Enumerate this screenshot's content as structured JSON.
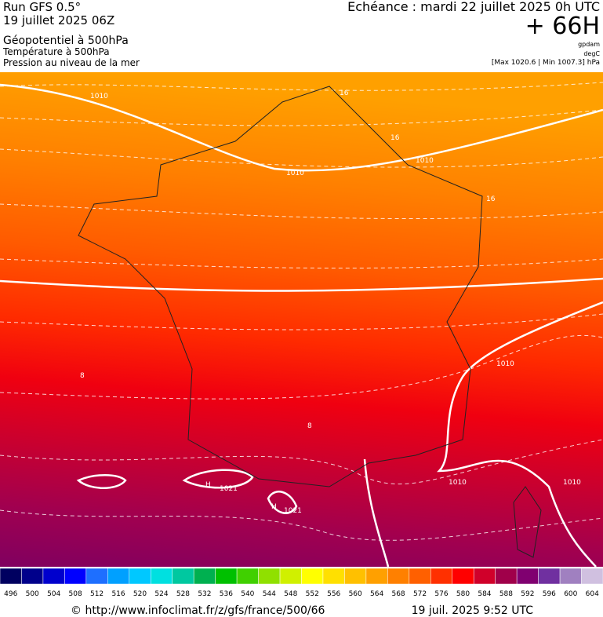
{
  "header": {
    "title": "Run GFS 0.5°",
    "run": "19 juillet 2025 06Z",
    "fields": [
      "Géopotentiel à 500hPa",
      "Température à 500hPa",
      "Pression au niveau de la mer"
    ],
    "echeance": "Echéance : mardi 22 juillet 2025 0h UTC",
    "offset": "+ 66H",
    "units": [
      "gpdam",
      "degC",
      "[Max 1020.6 | Min 1007.3] hPa"
    ]
  },
  "map": {
    "labels": [
      "1010",
      "1010",
      "1010",
      "16",
      "16",
      "16",
      "8",
      "8",
      "1010",
      "1010",
      "1010",
      "H",
      "1021",
      "H",
      "1021"
    ]
  },
  "legend": {
    "values": [
      496,
      500,
      504,
      508,
      512,
      516,
      520,
      524,
      528,
      532,
      536,
      540,
      544,
      548,
      552,
      556,
      560,
      564,
      568,
      572,
      576,
      580,
      584,
      588,
      592,
      596,
      600,
      604
    ],
    "colors": [
      "#000060",
      "#00008b",
      "#0000cd",
      "#0000ff",
      "#1e6fff",
      "#00a0ff",
      "#00c8ff",
      "#00e0e0",
      "#00c8a0",
      "#00b050",
      "#00c000",
      "#40d000",
      "#90e000",
      "#d0f000",
      "#ffff00",
      "#ffe000",
      "#ffc000",
      "#ffa000",
      "#ff8000",
      "#ff6000",
      "#ff3000",
      "#ff0000",
      "#d0002a",
      "#a0004a",
      "#800070",
      "#7030a0",
      "#a080c0",
      "#d0c0e0"
    ]
  },
  "footer": {
    "source": "© http://www.infoclimat.fr/z/gfs/france/500/66",
    "date": "19 juil. 2025  9:52 UTC"
  }
}
